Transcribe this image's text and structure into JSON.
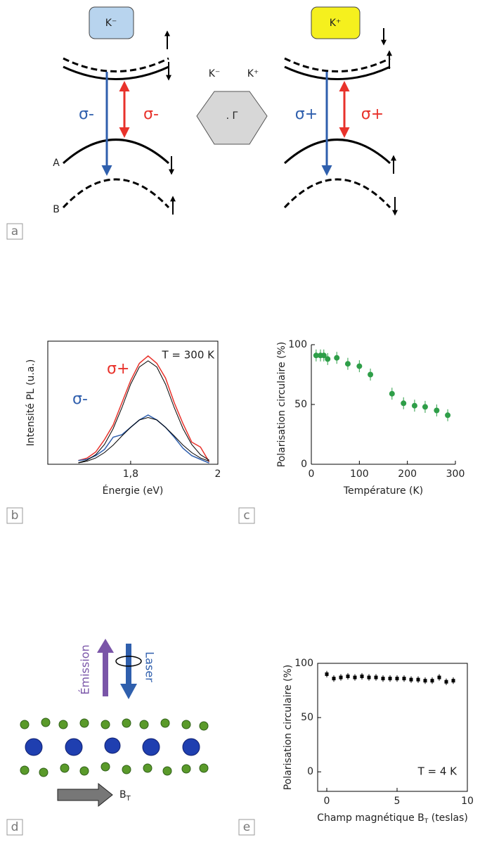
{
  "panel_labels": [
    "a",
    "b",
    "c",
    "d",
    "e"
  ],
  "diagram_a": {
    "valley_left": "K⁻",
    "valley_right": "K⁺",
    "sigma_minus_blue": "σ-",
    "sigma_minus_red": "σ-",
    "sigma_plus_blue": "σ+",
    "sigma_plus_red": "σ+",
    "hex_left": "K⁻",
    "hex_right": "K⁺",
    "gamma": ". Γ",
    "band_a": "A",
    "band_b": "B"
  },
  "diagram_d": {
    "emission": "Émission",
    "laser": "Laser",
    "field": "B",
    "field_sub": "T"
  },
  "chart_data": [
    {
      "type": "line",
      "xlabel": "Énergie (eV)",
      "ylabel": "Intensité PL (u.a.)",
      "annotation": "T = 300 K",
      "xlim": [
        1.61,
        2.0
      ],
      "ylim": [
        0,
        1
      ],
      "xticks": [
        {
          "value": 1.8,
          "label": "1,8"
        },
        2
      ],
      "x": [
        1.68,
        1.7,
        1.72,
        1.74,
        1.76,
        1.78,
        1.8,
        1.82,
        1.84,
        1.86,
        1.88,
        1.9,
        1.92,
        1.94,
        1.96,
        1.98
      ],
      "series": [
        {
          "name": "σ+",
          "color": "#e8322b",
          "values": [
            0.03,
            0.05,
            0.1,
            0.2,
            0.32,
            0.5,
            0.68,
            0.82,
            0.88,
            0.82,
            0.7,
            0.5,
            0.33,
            0.18,
            0.14,
            0.02
          ]
        },
        {
          "name": "σ-",
          "color": "#2f5fad",
          "values": [
            0.03,
            0.04,
            0.07,
            0.12,
            0.22,
            0.24,
            0.3,
            0.36,
            0.4,
            0.36,
            0.3,
            0.22,
            0.13,
            0.07,
            0.04,
            0.01
          ]
        }
      ],
      "fits": [
        {
          "color": "#000000",
          "values": [
            0.012,
            0.033,
            0.078,
            0.161,
            0.29,
            0.46,
            0.65,
            0.79,
            0.84,
            0.79,
            0.65,
            0.46,
            0.29,
            0.161,
            0.078,
            0.033
          ]
        },
        {
          "color": "#000000",
          "values": [
            0.011,
            0.025,
            0.051,
            0.095,
            0.156,
            0.23,
            0.3,
            0.36,
            0.38,
            0.36,
            0.3,
            0.23,
            0.156,
            0.095,
            0.051,
            0.025
          ]
        }
      ]
    },
    {
      "type": "scatter",
      "xlabel": "Température (K)",
      "ylabel": "Polarisation circulaire (%)",
      "color": "#2e9e48",
      "xlim": [
        0,
        300
      ],
      "ylim": [
        0,
        100
      ],
      "xticks": [
        0,
        100,
        200,
        300
      ],
      "yticks": [
        0,
        50,
        100
      ],
      "x": [
        10,
        19,
        26,
        34,
        53,
        76,
        100,
        123,
        168,
        192,
        215,
        237,
        261,
        284
      ],
      "values": [
        91,
        91,
        91,
        88,
        89,
        84,
        82,
        75,
        59,
        51,
        49,
        48,
        45,
        41
      ],
      "errors": [
        5,
        5,
        5,
        5,
        5,
        5,
        5,
        5,
        5,
        5,
        5,
        5,
        5,
        5
      ]
    },
    {
      "type": "scatter",
      "xlabel": [
        "Champ magnétique B",
        "T",
        " (teslas)"
      ],
      "ylabel": "Polarisation circulaire (%)",
      "annotation": "T = 4 K",
      "color": "#000000",
      "xlim": [
        -0.65,
        10
      ],
      "ylim": [
        -18,
        100
      ],
      "xticks": [
        0,
        5,
        10
      ],
      "yticks": [
        0,
        50,
        100
      ],
      "x": [
        0,
        0.5,
        1,
        1.5,
        2,
        2.5,
        3,
        3.5,
        4,
        4.5,
        5,
        5.5,
        6,
        6.5,
        7,
        7.5,
        8,
        8.5,
        9
      ],
      "values": [
        90,
        86,
        87,
        88,
        87,
        88,
        87,
        87,
        86,
        86,
        86,
        86,
        85,
        85,
        84,
        84,
        87,
        83,
        84
      ],
      "errors": [
        3,
        3,
        3,
        3,
        3,
        3,
        3,
        3,
        3,
        3,
        3,
        3,
        3,
        3,
        3,
        3,
        3,
        3,
        3
      ]
    }
  ]
}
